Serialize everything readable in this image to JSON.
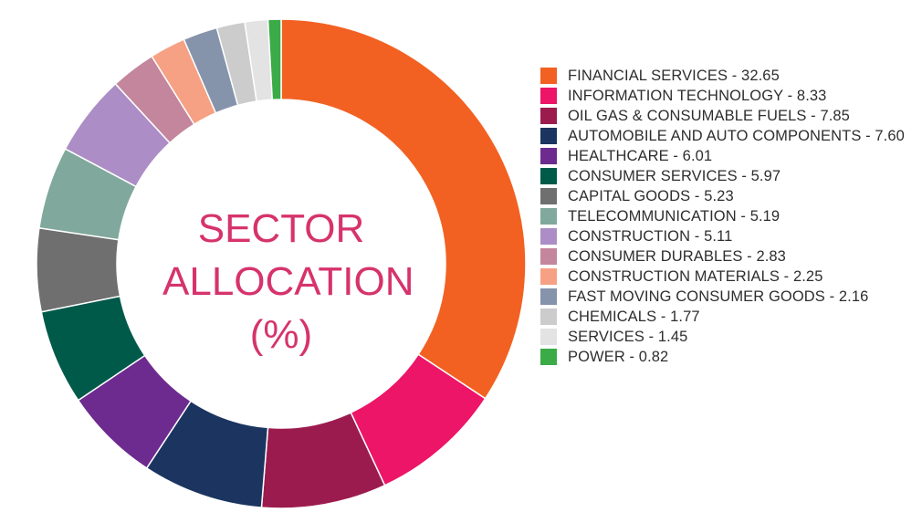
{
  "chart_data": {
    "type": "pie",
    "title": "SECTOR ALLOCATION (%)",
    "title_lines": [
      "SECTOR",
      "ALLOCATION",
      "(%)"
    ],
    "legend_position": "right",
    "slices": [
      {
        "label": "FINANCIAL SERVICES - 32.65",
        "value": 32.65,
        "color": "#f26122"
      },
      {
        "label": "INFORMATION TECHNOLOGY - 8.33",
        "value": 8.33,
        "color": "#ec1567"
      },
      {
        "label": "OIL GAS & CONSUMABLE FUELS - 7.85",
        "value": 7.85,
        "color": "#9c1b4f"
      },
      {
        "label": "AUTOMOBILE AND AUTO COMPONENTS - 7.60",
        "value": 7.6,
        "color": "#1b3560"
      },
      {
        "label": "HEALTHCARE - 6.01",
        "value": 6.01,
        "color": "#6d2b8f"
      },
      {
        "label": "CONSUMER SERVICES - 5.97",
        "value": 5.97,
        "color": "#005a4a"
      },
      {
        "label": "CAPITAL GOODS - 5.23",
        "value": 5.23,
        "color": "#6f6f6f"
      },
      {
        "label": "TELECOMMUNICATION - 5.19",
        "value": 5.19,
        "color": "#80a89c"
      },
      {
        "label": "CONSTRUCTION - 5.11",
        "value": 5.11,
        "color": "#ad8dc6"
      },
      {
        "label": "CONSUMER DURABLES - 2.83",
        "value": 2.83,
        "color": "#c4869c"
      },
      {
        "label": "CONSTRUCTION MATERIALS - 2.25",
        "value": 2.25,
        "color": "#f6a183"
      },
      {
        "label": "FAST MOVING CONSUMER GOODS - 2.16",
        "value": 2.16,
        "color": "#8593ab"
      },
      {
        "label": "CHEMICALS - 1.77",
        "value": 1.77,
        "color": "#cccccc"
      },
      {
        "label": "SERVICES - 1.45",
        "value": 1.45,
        "color": "#e3e3e3"
      },
      {
        "label": "POWER - 0.82",
        "value": 0.82,
        "color": "#3aab47"
      }
    ]
  }
}
